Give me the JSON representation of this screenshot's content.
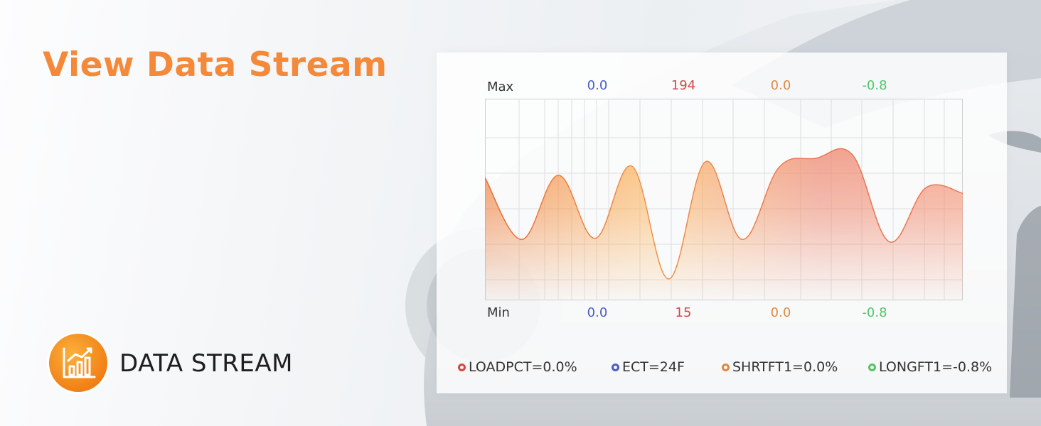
{
  "header": {
    "title": "View Data Stream"
  },
  "badge": {
    "label": "DATA STREAM",
    "icon": "bar-chart-icon",
    "color": "#f7901e"
  },
  "chart_panel": {
    "max_label": "Max",
    "min_label": "Min",
    "max_values": [
      "0.0",
      "194",
      "0.0",
      "-0.8"
    ],
    "min_values": [
      "0.0",
      "15",
      "0.0",
      "-0.8"
    ],
    "legend": [
      {
        "label": "LOADPCT=0.0%",
        "color": "#d64545"
      },
      {
        "label": "ECT=24F",
        "color": "#4a5bcc"
      },
      {
        "label": "SHRTFT1=0.0%",
        "color": "#dd8a45"
      },
      {
        "label": "LONGFT1=-0.8%",
        "color": "#52c46a"
      }
    ]
  },
  "chart_data": {
    "type": "area",
    "ylim": [
      15,
      194
    ],
    "series": [
      {
        "values": [
          124,
          69,
          126,
          70,
          134,
          34,
          138,
          69,
          133,
          141,
          144,
          67,
          115,
          110
        ]
      }
    ]
  }
}
